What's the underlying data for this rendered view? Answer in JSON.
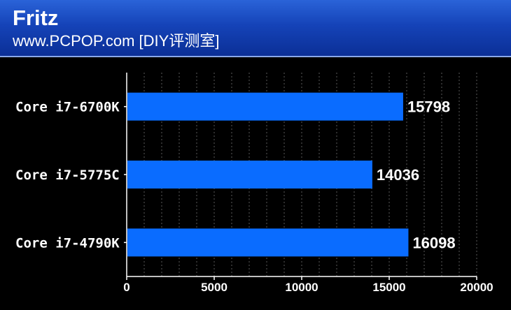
{
  "header": {
    "title": "Fritz",
    "subtitle": "www.PCPOP.com [DIY评测室]"
  },
  "colors": {
    "background": "#000000",
    "bar": "#0a6cff",
    "header": "#1543b8",
    "text": "#ffffff"
  },
  "chart_data": {
    "type": "bar",
    "orientation": "horizontal",
    "categories": [
      "Core i7-6700K",
      "Core i7-5775C",
      "Core i7-4790K"
    ],
    "values": [
      15798,
      14036,
      16098
    ],
    "title": "Fritz",
    "subtitle": "www.PCPOP.com [DIY评测室]",
    "xlabel": "",
    "ylabel": "",
    "xlim": [
      0,
      20000
    ],
    "xticks": [
      0,
      5000,
      10000,
      15000,
      20000
    ],
    "xtick_labels": [
      "0",
      "5000",
      "10000",
      "15000",
      "20000"
    ],
    "grid": "vertical dashed",
    "legend": "none"
  }
}
